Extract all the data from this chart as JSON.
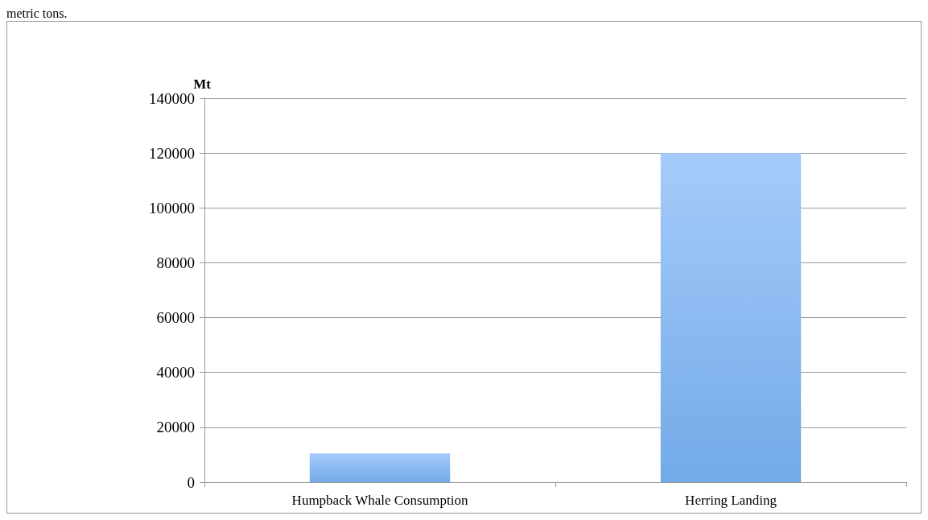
{
  "chart_data": {
    "type": "bar",
    "annotations": [
      "metric tons."
    ],
    "ylabel": "Mt",
    "categories": [
      "Humpback Whale Consumption",
      "Herring Landing"
    ],
    "values": [
      10500,
      120000
    ],
    "color": "#72aae8",
    "ylim": [
      0,
      140000
    ],
    "yticks": [
      0,
      20000,
      40000,
      60000,
      80000,
      100000,
      120000,
      140000
    ],
    "grid": "y"
  }
}
